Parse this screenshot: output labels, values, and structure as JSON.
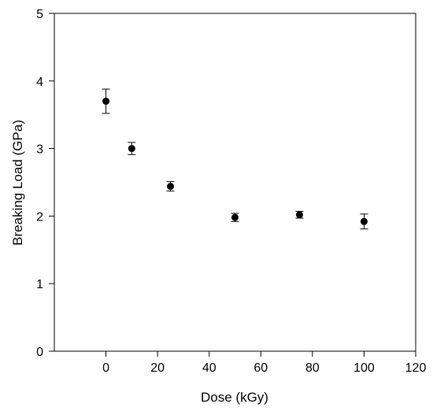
{
  "chart_data": {
    "type": "scatter",
    "title": "",
    "xlabel": "Dose (kGy)",
    "ylabel": "Breaking Load (GPa)",
    "xlim": [
      -20,
      120
    ],
    "ylim": [
      0,
      5
    ],
    "x_ticks": [
      0,
      20,
      40,
      60,
      80,
      100,
      120
    ],
    "y_ticks": [
      0,
      1,
      2,
      3,
      4,
      5
    ],
    "grid": false,
    "legend": "none",
    "series": [
      {
        "marker": "filled-circle",
        "color": "#000000",
        "points": [
          {
            "x": 0,
            "y": 3.7,
            "err": 0.18
          },
          {
            "x": 10,
            "y": 3.0,
            "err": 0.09
          },
          {
            "x": 25,
            "y": 2.44,
            "err": 0.07
          },
          {
            "x": 50,
            "y": 1.98,
            "err": 0.06
          },
          {
            "x": 75,
            "y": 2.02,
            "err": 0.05
          },
          {
            "x": 100,
            "y": 1.92,
            "err": 0.11
          }
        ]
      }
    ]
  }
}
